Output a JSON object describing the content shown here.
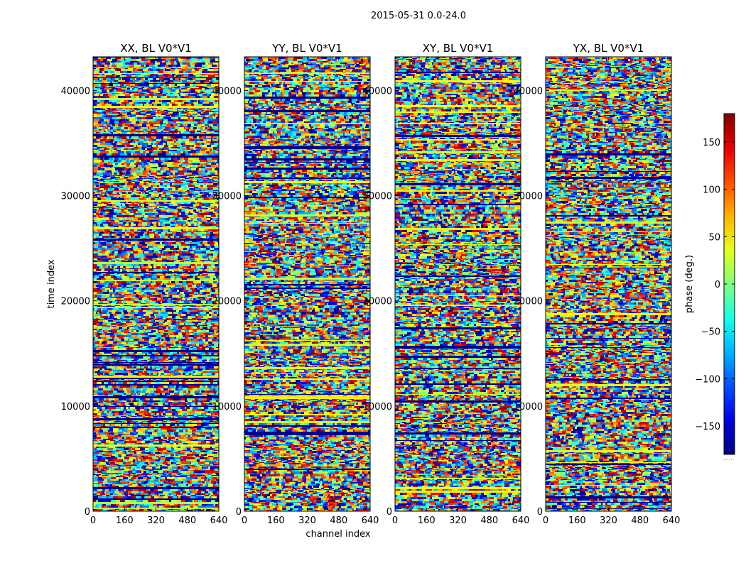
{
  "chart_data": {
    "type": "heatmap",
    "suptitle": "2015-05-31 0.0-24.0",
    "xlabel": "channel index",
    "ylabel": "time index",
    "xlim": [
      0,
      640
    ],
    "ylim": [
      0,
      43200
    ],
    "xticks": [
      0,
      160,
      320,
      480,
      640
    ],
    "yticks": [
      0,
      10000,
      20000,
      30000,
      40000
    ],
    "panels": [
      {
        "title": "XX, BL V0*V1"
      },
      {
        "title": "YY, BL V0*V1"
      },
      {
        "title": "XY, BL V0*V1"
      },
      {
        "title": "YX, BL V0*V1"
      }
    ],
    "colorbar": {
      "label": "phase (deg.)",
      "range": [
        -180,
        180
      ],
      "ticks": [
        -150,
        -100,
        -50,
        0,
        50,
        100,
        150
      ],
      "colormap": "jet",
      "extra_label": "......"
    }
  }
}
